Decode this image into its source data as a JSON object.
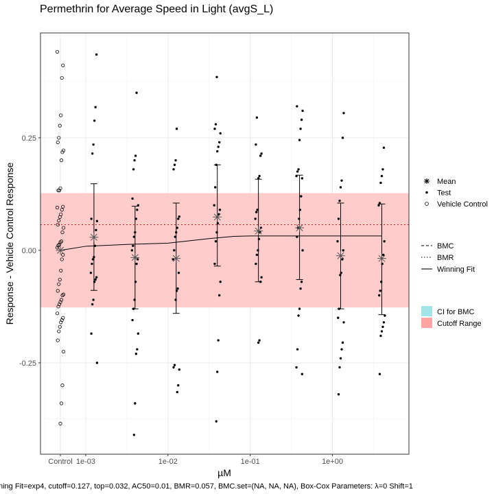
{
  "chart_data": {
    "type": "scatter",
    "title": "Permethrin for Average Speed in Light (avgS_L)",
    "xlabel": "µM",
    "ylabel": "Response - Vehicle Control Response",
    "footer": "ning Fit=exp4, cutoff=0.127, top=0.032, AC50=0.01, BMR=0.057, BMC.set=(NA, NA, NA), Box-Cox Parameters: λ=0 Shift=1",
    "x_scale": "log10",
    "xlim_log10": [
      -3.55,
      0.93
    ],
    "ylim": [
      -0.453,
      0.483
    ],
    "control_label": "Control",
    "x_ticks": [
      {
        "label": "1e-03",
        "log10": -3
      },
      {
        "label": "1e-02",
        "log10": -2
      },
      {
        "label": "1e-01",
        "log10": -1
      },
      {
        "label": "1e+00",
        "log10": 0
      }
    ],
    "y_ticks": [
      {
        "label": "-0.25",
        "value": -0.25
      },
      {
        "label": "0.00",
        "value": 0.0
      },
      {
        "label": "0.25",
        "value": 0.25
      }
    ],
    "grid": true,
    "cutoff": 0.127,
    "bmr": 0.057,
    "cutoff_color": "#ffcccc",
    "control_points": [
      0.441,
      0.411,
      0.383,
      0.3,
      0.277,
      0.25,
      0.24,
      0.222,
      0.218,
      0.2,
      0.138,
      0.133,
      0.133,
      0.095,
      0.097,
      0.09,
      0.08,
      0.074,
      0.066,
      0.057,
      0.05,
      0.04,
      0.02,
      0.018,
      0.013,
      0.011,
      0.006,
      -0.01,
      -0.02,
      -0.045,
      -0.065,
      -0.075,
      -0.09,
      -0.098,
      -0.1,
      -0.11,
      -0.115,
      -0.12,
      -0.125,
      -0.14,
      -0.15,
      -0.155,
      -0.16,
      -0.17,
      -0.18,
      -0.2,
      -0.225,
      -0.3,
      -0.34,
      -0.385
    ],
    "groups": [
      {
        "log10": -2.9,
        "mean": 0.029,
        "lower": -0.089,
        "upper": 0.148,
        "points": [
          0.435,
          0.318,
          0.288,
          0.235,
          0.215,
          0.07,
          0.065,
          0.045,
          0.01,
          -0.015,
          -0.02,
          -0.03,
          -0.05,
          -0.06,
          -0.065,
          -0.07,
          -0.11,
          -0.12,
          -0.185,
          -0.25
        ]
      },
      {
        "log10": -2.4,
        "mean": -0.016,
        "lower": -0.13,
        "upper": 0.098,
        "points": [
          0.35,
          0.21,
          0.2,
          0.18,
          0.115,
          0.1,
          0.09,
          0.07,
          0.04,
          0.03,
          0.01,
          0.0,
          -0.02,
          -0.03,
          -0.07,
          -0.11,
          -0.13,
          -0.155,
          -0.185,
          -0.22,
          -0.23,
          -0.34,
          -0.41
        ]
      },
      {
        "log10": -1.9,
        "mean": -0.018,
        "lower": -0.14,
        "upper": 0.105,
        "points": [
          0.27,
          0.2,
          0.19,
          0.18,
          0.075,
          0.07,
          0.05,
          0.04,
          0.03,
          0.0,
          -0.02,
          -0.05,
          -0.085,
          -0.09,
          -0.11,
          -0.255,
          -0.26,
          -0.265,
          -0.3,
          -0.315
        ]
      },
      {
        "log10": -1.4,
        "mean": 0.074,
        "lower": -0.035,
        "upper": 0.19,
        "points": [
          0.385,
          0.28,
          0.27,
          0.26,
          0.24,
          0.23,
          0.22,
          0.19,
          0.14,
          0.1,
          0.09,
          0.08,
          0.06,
          0.04,
          0.02,
          -0.03,
          -0.07,
          -0.1,
          -0.2,
          -0.27,
          -0.38
        ]
      },
      {
        "log10": -0.9,
        "mean": 0.043,
        "lower": -0.07,
        "upper": 0.158,
        "points": [
          0.295,
          0.235,
          0.215,
          0.21,
          0.165,
          0.16,
          0.09,
          0.085,
          0.07,
          0.05,
          0.04,
          0.025,
          0.0,
          -0.01,
          -0.03,
          -0.06,
          -0.07,
          -0.2,
          -0.205
        ]
      },
      {
        "log10": -0.4,
        "mean": 0.05,
        "lower": -0.065,
        "upper": 0.167,
        "points": [
          0.32,
          0.31,
          0.29,
          0.27,
          0.245,
          0.18,
          0.175,
          0.165,
          0.16,
          0.12,
          0.09,
          0.07,
          0.05,
          0.03,
          0.0,
          -0.07,
          -0.085,
          -0.13,
          -0.145,
          -0.22,
          -0.26,
          -0.275
        ]
      },
      {
        "log10": 0.1,
        "mean": -0.012,
        "lower": -0.13,
        "upper": 0.105,
        "points": [
          0.305,
          0.25,
          0.155,
          0.14,
          0.11,
          0.07,
          0.02,
          0.0,
          -0.02,
          -0.05,
          -0.055,
          -0.13,
          -0.15,
          -0.16,
          -0.205,
          -0.22,
          -0.24,
          -0.26,
          -0.32
        ]
      },
      {
        "log10": 0.6,
        "mean": -0.018,
        "lower": -0.143,
        "upper": 0.103,
        "points": [
          0.228,
          0.18,
          0.165,
          0.15,
          0.105,
          0.1,
          0.02,
          -0.01,
          -0.03,
          -0.07,
          -0.09,
          -0.1,
          -0.145,
          -0.16,
          -0.17,
          -0.18,
          -0.19,
          -0.275
        ]
      }
    ],
    "fit_curve": [
      {
        "log10": -4.45,
        "y": 0.0
      },
      {
        "log10": -3.0,
        "y": 0.009
      },
      {
        "log10": -2.5,
        "y": 0.013
      },
      {
        "log10": -2.0,
        "y": 0.016
      },
      {
        "log10": -1.8,
        "y": 0.02
      },
      {
        "log10": -1.5,
        "y": 0.026
      },
      {
        "log10": -1.2,
        "y": 0.031
      },
      {
        "log10": -1.0,
        "y": 0.032
      },
      {
        "log10": -0.5,
        "y": 0.032
      },
      {
        "log10": 0.6,
        "y": 0.032
      }
    ],
    "legend_placement": "right",
    "legend1": [
      {
        "label": "Mean",
        "symbol": "asterisk"
      },
      {
        "label": "Test",
        "symbol": "dot"
      },
      {
        "label": "Vehicle Control",
        "symbol": "circle"
      }
    ],
    "legend2": [
      {
        "label": "BMC",
        "symbol": "dashed"
      },
      {
        "label": "BMR",
        "symbol": "dotted"
      },
      {
        "label": "Winning Fit",
        "symbol": "solid"
      }
    ],
    "legend3": [
      {
        "label": "CI for BMC",
        "color": "#a3e4e8"
      },
      {
        "label": "Cutoff Range",
        "color": "#ffa3a3"
      }
    ]
  }
}
